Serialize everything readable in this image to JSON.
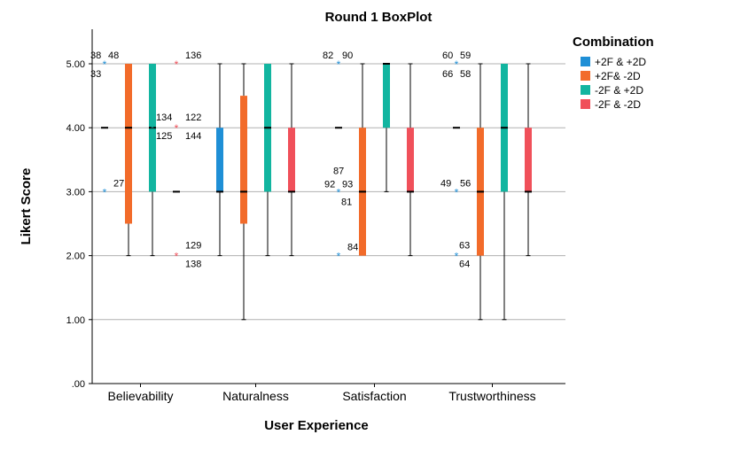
{
  "chart_data": {
    "type": "box",
    "title": "Round 1 BoxPlot",
    "xlabel": "User Experience",
    "ylabel": "Likert Score",
    "ylim": [
      0,
      5.5
    ],
    "yticks": [
      0,
      1,
      2,
      3,
      4,
      5
    ],
    "ytick_labels": [
      ".00",
      "1.00",
      "2.00",
      "3.00",
      "4.00",
      "5.00"
    ],
    "grid": "horizontal",
    "categories": [
      "Believability",
      "Naturalness",
      "Satisfaction",
      "Trustworthiness"
    ],
    "legend": {
      "title": "Combination",
      "position": "right"
    },
    "series": [
      {
        "name": "+2F & +2D",
        "color": "#1f8fd6",
        "boxes": [
          {
            "min": 4,
            "q1": 4,
            "median": 4,
            "q3": 4,
            "max": 4
          },
          {
            "min": 2,
            "q1": 3,
            "median": 3,
            "q3": 4,
            "max": 5
          },
          {
            "min": 4,
            "q1": 4,
            "median": 4,
            "q3": 4,
            "max": 4
          },
          {
            "min": 4,
            "q1": 4,
            "median": 4,
            "q3": 4,
            "max": 4
          }
        ],
        "outliers": [
          [
            {
              "y": 5,
              "labels": [
                "38",
                "48",
                "33"
              ]
            },
            {
              "y": 3,
              "labels": [
                "27"
              ]
            }
          ],
          [],
          [
            {
              "y": 5,
              "labels": [
                "82",
                "90"
              ]
            },
            {
              "y": 3,
              "labels": [
                "87",
                "92",
                "93",
                "81"
              ]
            },
            {
              "y": 2,
              "labels": [
                "84"
              ]
            }
          ],
          [
            {
              "y": 5,
              "labels": [
                "60",
                "59",
                "66",
                "58"
              ]
            },
            {
              "y": 3,
              "labels": [
                "49",
                "56"
              ]
            },
            {
              "y": 2,
              "labels": [
                "63",
                "64"
              ]
            }
          ]
        ]
      },
      {
        "name": "+2F& -2D",
        "color": "#f26b2a",
        "boxes": [
          {
            "min": 2,
            "q1": 2.5,
            "median": 4,
            "q3": 5,
            "max": 5
          },
          {
            "min": 1,
            "q1": 2.5,
            "median": 3,
            "q3": 4.5,
            "max": 5
          },
          {
            "min": 2,
            "q1": 2,
            "median": 3,
            "q3": 4,
            "max": 5
          },
          {
            "min": 1,
            "q1": 2,
            "median": 3,
            "q3": 4,
            "max": 5
          }
        ],
        "outliers": [
          [],
          [],
          [],
          []
        ]
      },
      {
        "name": "-2F & +2D",
        "color": "#12b5a0",
        "boxes": [
          {
            "min": 2,
            "q1": 3,
            "median": 4,
            "q3": 5,
            "max": 5
          },
          {
            "min": 2,
            "q1": 3,
            "median": 4,
            "q3": 5,
            "max": 5
          },
          {
            "min": 3,
            "q1": 4,
            "median": 5,
            "q3": 5,
            "max": 5
          },
          {
            "min": 1,
            "q1": 3,
            "median": 4,
            "q3": 5,
            "max": 5
          }
        ],
        "outliers": [
          [
            {
              "y": 4,
              "labels": [
                "134",
                "125"
              ]
            }
          ],
          [],
          [],
          []
        ]
      },
      {
        "name": "-2F & -2D",
        "color": "#f0505a",
        "boxes": [
          {
            "min": 3,
            "q1": 3,
            "median": 3,
            "q3": 3,
            "max": 3
          },
          {
            "min": 2,
            "q1": 3,
            "median": 3,
            "q3": 4,
            "max": 5
          },
          {
            "min": 2,
            "q1": 3,
            "median": 3,
            "q3": 4,
            "max": 5
          },
          {
            "min": 2,
            "q1": 3,
            "median": 3,
            "q3": 4,
            "max": 5
          }
        ],
        "outliers": [
          [
            {
              "y": 5,
              "labels": [
                "136"
              ]
            },
            {
              "y": 4,
              "labels": [
                "122",
                "144"
              ]
            },
            {
              "y": 2,
              "labels": [
                "129",
                "138"
              ]
            }
          ],
          [],
          [],
          []
        ]
      }
    ]
  }
}
